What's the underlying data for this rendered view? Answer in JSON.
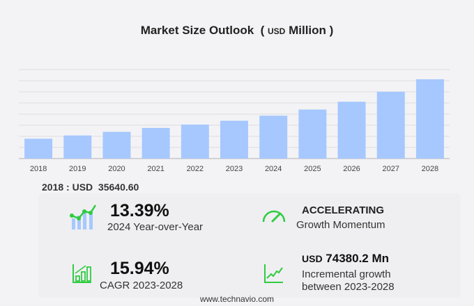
{
  "chart_data": {
    "type": "bar",
    "title": "Market Size Outlook",
    "unit": "USD",
    "unit_suffix": "Million",
    "categories": [
      "2018",
      "2019",
      "2020",
      "2021",
      "2022",
      "2023",
      "2024",
      "2025",
      "2026",
      "2027",
      "2028"
    ],
    "values": [
      35640.6,
      41500,
      48000,
      55000,
      61000,
      67927,
      77022,
      88000,
      102000,
      120000,
      142307
    ],
    "ylim": [
      0,
      142307
    ],
    "grid": true,
    "bar_color": "#a6c8ff"
  },
  "highlight": "2018 : USD  35640.60",
  "stats": {
    "yoy": {
      "value": "13.39%",
      "label": "2024 Year-over-Year",
      "icon": "bar-line-growth-icon"
    },
    "momentum": {
      "value": "ACCELERATING",
      "label": "Growth Momentum",
      "icon": "speedometer-icon"
    },
    "cagr": {
      "value": "15.94%",
      "label": "CAGR 2023-2028",
      "icon": "bar-chart-icon"
    },
    "incremental": {
      "prefix": "USD",
      "value": "74380.2 Mn",
      "label1": "Incremental growth",
      "label2": "between 2023-2028",
      "icon": "trend-line-icon"
    }
  },
  "footer": "www.technavio.com",
  "colors": {
    "accent": "#2ecc40",
    "bar": "#a6c8ff"
  }
}
